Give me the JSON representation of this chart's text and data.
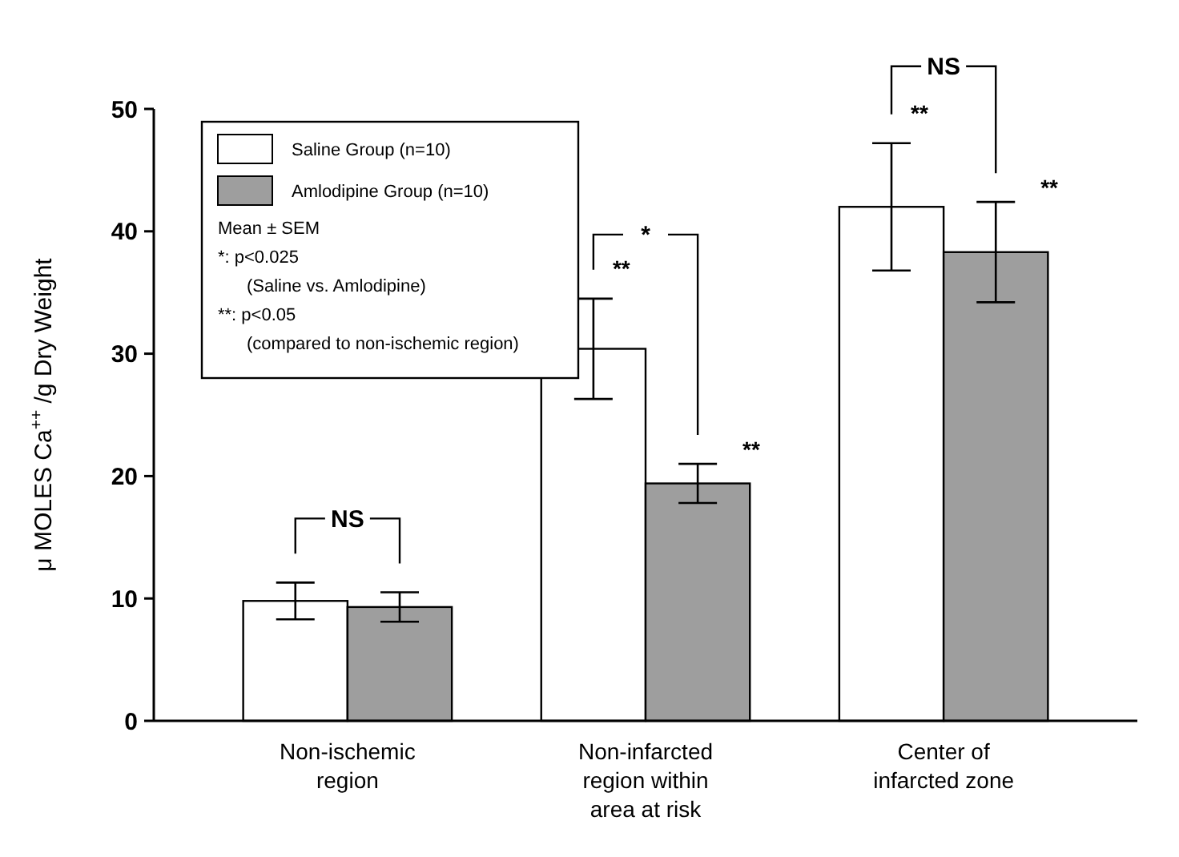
{
  "chart_data": {
    "type": "bar",
    "ylabel": "μ MOLES Ca$^{++}$ /g Dry Weight",
    "categories": [
      "Non-ischemic\nregion",
      "Non-infarcted\nregion within\narea at risk",
      "Center of\ninfarcted zone"
    ],
    "series": [
      {
        "name": "Saline Group (n=10)",
        "color": "#ffffff",
        "values": [
          9.8,
          30.4,
          42.0
        ],
        "errors": [
          1.5,
          4.1,
          5.2
        ]
      },
      {
        "name": "Amlodipine Group (n=10)",
        "color": "#9e9e9e",
        "values": [
          9.3,
          19.4,
          38.3
        ],
        "errors": [
          1.2,
          1.6,
          4.1
        ]
      }
    ],
    "ylim": [
      0,
      50
    ],
    "yticks": [
      0,
      10,
      20,
      30,
      40,
      50
    ],
    "grid": false,
    "legend": "top left",
    "annotations": [
      "Mean ± SEM",
      "*: p<0.025",
      "(Saline vs. Amlodipine)",
      "**: p<0.05",
      "(compared to non-ischemic region)",
      "NS",
      "*",
      "**",
      "**",
      "NS",
      "**",
      "**"
    ]
  }
}
